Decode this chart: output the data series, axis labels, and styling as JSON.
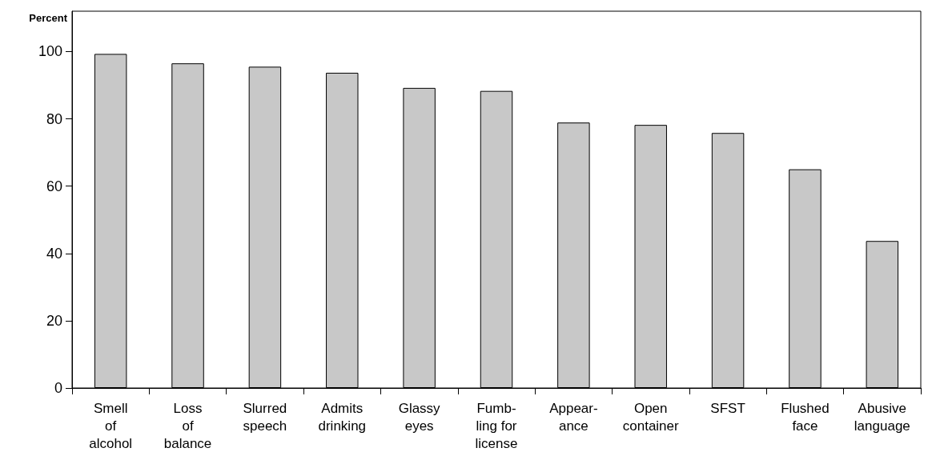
{
  "chart_data": {
    "type": "bar",
    "ylabel": "Percent",
    "categories": [
      "Smell\nof\nalcohol",
      "Loss\nof\nbalance",
      "Slurred\nspeech",
      "Admits\ndrinking",
      "Glassy\neyes",
      "Fumb-\nling for\nlicense",
      "Appear-\nance",
      "Open\ncontainer",
      "SFST",
      "Flushed\nface",
      "Abusive\nlanguage"
    ],
    "values": [
      99.3,
      96.5,
      95.5,
      93.7,
      89.2,
      88.3,
      78.9,
      78.2,
      75.8,
      65.0,
      43.7
    ],
    "color": "#c8c8c8",
    "ylim": [
      0,
      112
    ],
    "yticks": [
      0,
      20,
      40,
      60,
      80,
      100
    ],
    "grid": false
  }
}
